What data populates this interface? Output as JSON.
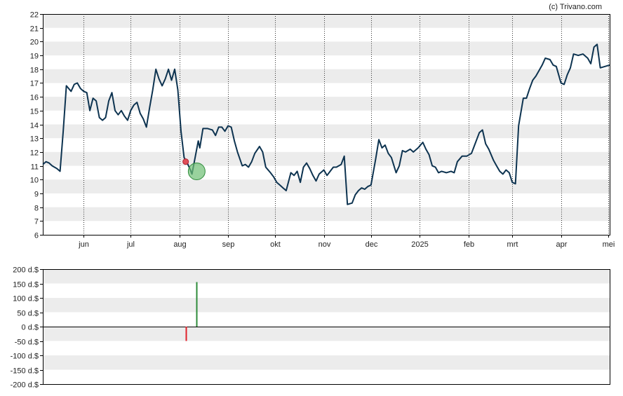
{
  "copyright": "(c) Trivano.com",
  "colors": {
    "band": "#ececec",
    "price_line": "#0d3350",
    "buy": "#2e8b3a",
    "sell": "#e0202a",
    "buy_marker_fill": "#6dbf73",
    "sell_marker_fill": "#e0505a"
  },
  "chart_data": [
    {
      "type": "line",
      "title": "",
      "xlabel": "",
      "ylabel": "",
      "ylim": [
        6,
        22
      ],
      "yticks": [
        "6",
        "7",
        "8",
        "9",
        "10",
        "11",
        "12",
        "13",
        "14",
        "15",
        "16",
        "17",
        "18",
        "19",
        "20",
        "21",
        "22"
      ],
      "grid": "alternating horizontal bands, dotted vertical lines at month starts",
      "x_range": [
        "2024-05-06",
        "2025-05-02"
      ],
      "xtick_labels": [
        {
          "label": "jun",
          "date": "2024-06-01"
        },
        {
          "label": "jul",
          "date": "2024-07-01"
        },
        {
          "label": "aug",
          "date": "2024-08-01"
        },
        {
          "label": "sep",
          "date": "2024-09-01"
        },
        {
          "label": "okt",
          "date": "2024-10-01"
        },
        {
          "label": "nov",
          "date": "2024-11-01"
        },
        {
          "label": "dec",
          "date": "2024-12-01"
        },
        {
          "label": "2025",
          "date": "2025-01-01"
        },
        {
          "label": "feb",
          "date": "2025-02-01"
        },
        {
          "label": "mrt",
          "date": "2025-03-01"
        },
        {
          "label": "apr",
          "date": "2025-04-01"
        },
        {
          "label": "mei",
          "date": "2025-05-01"
        }
      ],
      "series": [
        {
          "points": [
            [
              "2024-05-06",
              11.1
            ],
            [
              "2024-05-08",
              11.3
            ],
            [
              "2024-05-10",
              11.2
            ],
            [
              "2024-05-12",
              11.0
            ],
            [
              "2024-05-15",
              10.8
            ],
            [
              "2024-05-17",
              10.6
            ],
            [
              "2024-05-19",
              13.5
            ],
            [
              "2024-05-21",
              16.8
            ],
            [
              "2024-05-24",
              16.4
            ],
            [
              "2024-05-26",
              16.9
            ],
            [
              "2024-05-28",
              17.0
            ],
            [
              "2024-05-30",
              16.6
            ],
            [
              "2024-06-01",
              16.4
            ],
            [
              "2024-06-03",
              16.3
            ],
            [
              "2024-06-05",
              15.0
            ],
            [
              "2024-06-07",
              15.9
            ],
            [
              "2024-06-09",
              15.7
            ],
            [
              "2024-06-11",
              14.5
            ],
            [
              "2024-06-13",
              14.3
            ],
            [
              "2024-06-15",
              14.5
            ],
            [
              "2024-06-17",
              15.7
            ],
            [
              "2024-06-19",
              16.3
            ],
            [
              "2024-06-21",
              15.0
            ],
            [
              "2024-06-23",
              14.7
            ],
            [
              "2024-06-25",
              15.0
            ],
            [
              "2024-06-27",
              14.6
            ],
            [
              "2024-06-29",
              14.3
            ],
            [
              "2024-07-01",
              15.0
            ],
            [
              "2024-07-03",
              15.4
            ],
            [
              "2024-07-05",
              15.6
            ],
            [
              "2024-07-07",
              14.8
            ],
            [
              "2024-07-09",
              14.4
            ],
            [
              "2024-07-11",
              13.8
            ],
            [
              "2024-07-13",
              15.2
            ],
            [
              "2024-07-15",
              16.5
            ],
            [
              "2024-07-17",
              18.0
            ],
            [
              "2024-07-19",
              17.3
            ],
            [
              "2024-07-21",
              16.8
            ],
            [
              "2024-07-23",
              17.3
            ],
            [
              "2024-07-25",
              18.0
            ],
            [
              "2024-07-27",
              17.2
            ],
            [
              "2024-07-29",
              18.0
            ],
            [
              "2024-07-31",
              16.5
            ],
            [
              "2024-08-02",
              13.5
            ],
            [
              "2024-08-04",
              11.6
            ],
            [
              "2024-08-06",
              11.2
            ],
            [
              "2024-08-08",
              10.7
            ],
            [
              "2024-08-09",
              10.4
            ],
            [
              "2024-08-11",
              11.6
            ],
            [
              "2024-08-13",
              12.8
            ],
            [
              "2024-08-14",
              12.3
            ],
            [
              "2024-08-16",
              13.7
            ],
            [
              "2024-08-19",
              13.7
            ],
            [
              "2024-08-22",
              13.6
            ],
            [
              "2024-08-24",
              13.2
            ],
            [
              "2024-08-26",
              13.8
            ],
            [
              "2024-08-28",
              13.8
            ],
            [
              "2024-08-30",
              13.5
            ],
            [
              "2024-09-01",
              13.9
            ],
            [
              "2024-09-03",
              13.8
            ],
            [
              "2024-09-05",
              12.8
            ],
            [
              "2024-09-07",
              12.0
            ],
            [
              "2024-09-10",
              11.0
            ],
            [
              "2024-09-12",
              11.1
            ],
            [
              "2024-09-14",
              10.9
            ],
            [
              "2024-09-16",
              11.3
            ],
            [
              "2024-09-18",
              11.9
            ],
            [
              "2024-09-21",
              12.4
            ],
            [
              "2024-09-23",
              12.0
            ],
            [
              "2024-09-25",
              10.9
            ],
            [
              "2024-09-28",
              10.5
            ],
            [
              "2024-09-30",
              10.2
            ],
            [
              "2024-10-02",
              9.8
            ],
            [
              "2024-10-04",
              9.6
            ],
            [
              "2024-10-06",
              9.4
            ],
            [
              "2024-10-08",
              9.2
            ],
            [
              "2024-10-11",
              10.5
            ],
            [
              "2024-10-13",
              10.3
            ],
            [
              "2024-10-15",
              10.6
            ],
            [
              "2024-10-17",
              9.8
            ],
            [
              "2024-10-19",
              10.9
            ],
            [
              "2024-10-21",
              11.2
            ],
            [
              "2024-10-23",
              10.8
            ],
            [
              "2024-10-25",
              10.3
            ],
            [
              "2024-10-27",
              9.9
            ],
            [
              "2024-10-29",
              10.4
            ],
            [
              "2024-11-01",
              10.7
            ],
            [
              "2024-11-03",
              10.3
            ],
            [
              "2024-11-05",
              10.6
            ],
            [
              "2024-11-07",
              10.9
            ],
            [
              "2024-11-09",
              10.9
            ],
            [
              "2024-11-12",
              11.1
            ],
            [
              "2024-11-14",
              11.7
            ],
            [
              "2024-11-16",
              8.2
            ],
            [
              "2024-11-19",
              8.3
            ],
            [
              "2024-11-21",
              8.9
            ],
            [
              "2024-11-23",
              9.2
            ],
            [
              "2024-11-25",
              9.4
            ],
            [
              "2024-11-27",
              9.3
            ],
            [
              "2024-11-29",
              9.5
            ],
            [
              "2024-12-01",
              9.6
            ],
            [
              "2024-12-04",
              11.5
            ],
            [
              "2024-12-06",
              12.9
            ],
            [
              "2024-12-08",
              12.3
            ],
            [
              "2024-12-10",
              12.5
            ],
            [
              "2024-12-12",
              11.9
            ],
            [
              "2024-12-14",
              11.6
            ],
            [
              "2024-12-17",
              10.5
            ],
            [
              "2024-12-19",
              11.0
            ],
            [
              "2024-12-21",
              12.1
            ],
            [
              "2024-12-23",
              12.0
            ],
            [
              "2024-12-26",
              12.2
            ],
            [
              "2024-12-28",
              12.0
            ],
            [
              "2024-12-31",
              12.3
            ],
            [
              "2025-01-03",
              12.7
            ],
            [
              "2025-01-05",
              12.2
            ],
            [
              "2025-01-07",
              11.8
            ],
            [
              "2025-01-09",
              11.0
            ],
            [
              "2025-01-11",
              10.9
            ],
            [
              "2025-01-13",
              10.5
            ],
            [
              "2025-01-15",
              10.6
            ],
            [
              "2025-01-18",
              10.5
            ],
            [
              "2025-01-21",
              10.6
            ],
            [
              "2025-01-23",
              10.5
            ],
            [
              "2025-01-25",
              11.3
            ],
            [
              "2025-01-28",
              11.7
            ],
            [
              "2025-01-31",
              11.7
            ],
            [
              "2025-02-03",
              11.9
            ],
            [
              "2025-02-05",
              12.5
            ],
            [
              "2025-02-08",
              13.4
            ],
            [
              "2025-02-10",
              13.6
            ],
            [
              "2025-02-12",
              12.6
            ],
            [
              "2025-02-14",
              12.2
            ],
            [
              "2025-02-17",
              11.4
            ],
            [
              "2025-02-19",
              11.0
            ],
            [
              "2025-02-21",
              10.6
            ],
            [
              "2025-02-23",
              10.4
            ],
            [
              "2025-02-25",
              10.7
            ],
            [
              "2025-02-27",
              10.5
            ],
            [
              "2025-03-01",
              9.8
            ],
            [
              "2025-03-03",
              9.7
            ],
            [
              "2025-03-05",
              13.9
            ],
            [
              "2025-03-08",
              15.9
            ],
            [
              "2025-03-10",
              15.9
            ],
            [
              "2025-03-12",
              16.6
            ],
            [
              "2025-03-14",
              17.2
            ],
            [
              "2025-03-16",
              17.5
            ],
            [
              "2025-03-18",
              17.9
            ],
            [
              "2025-03-20",
              18.3
            ],
            [
              "2025-03-22",
              18.8
            ],
            [
              "2025-03-25",
              18.7
            ],
            [
              "2025-03-27",
              18.3
            ],
            [
              "2025-03-29",
              18.2
            ],
            [
              "2025-04-01",
              17.0
            ],
            [
              "2025-04-03",
              16.9
            ],
            [
              "2025-04-05",
              17.6
            ],
            [
              "2025-04-07",
              18.1
            ],
            [
              "2025-04-09",
              19.1
            ],
            [
              "2025-04-12",
              19.0
            ],
            [
              "2025-04-15",
              19.1
            ],
            [
              "2025-04-18",
              18.8
            ],
            [
              "2025-04-20",
              18.4
            ],
            [
              "2025-04-22",
              19.6
            ],
            [
              "2025-04-24",
              19.8
            ],
            [
              "2025-04-26",
              18.1
            ],
            [
              "2025-04-29",
              18.2
            ],
            [
              "2025-05-02",
              18.3
            ]
          ]
        }
      ],
      "markers": [
        {
          "kind": "sell",
          "date": "2024-08-05",
          "value": 11.3
        },
        {
          "kind": "buy",
          "date": "2024-08-12",
          "value": 10.6
        }
      ]
    },
    {
      "type": "bar",
      "title": "",
      "ylim": [
        -200,
        200
      ],
      "yticks": [
        "-200 d.$",
        "-150 d.$",
        "-100 d.$",
        "-50 d.$",
        "0 d.$",
        "50 d.$",
        "100 d.$",
        "150 d.$",
        "200 d.$"
      ],
      "x_range": [
        "2024-05-06",
        "2025-05-02"
      ],
      "bars": [
        {
          "kind": "sell",
          "date": "2024-08-05",
          "value": -50
        },
        {
          "kind": "buy",
          "date": "2024-08-12",
          "value": 155
        }
      ]
    }
  ]
}
